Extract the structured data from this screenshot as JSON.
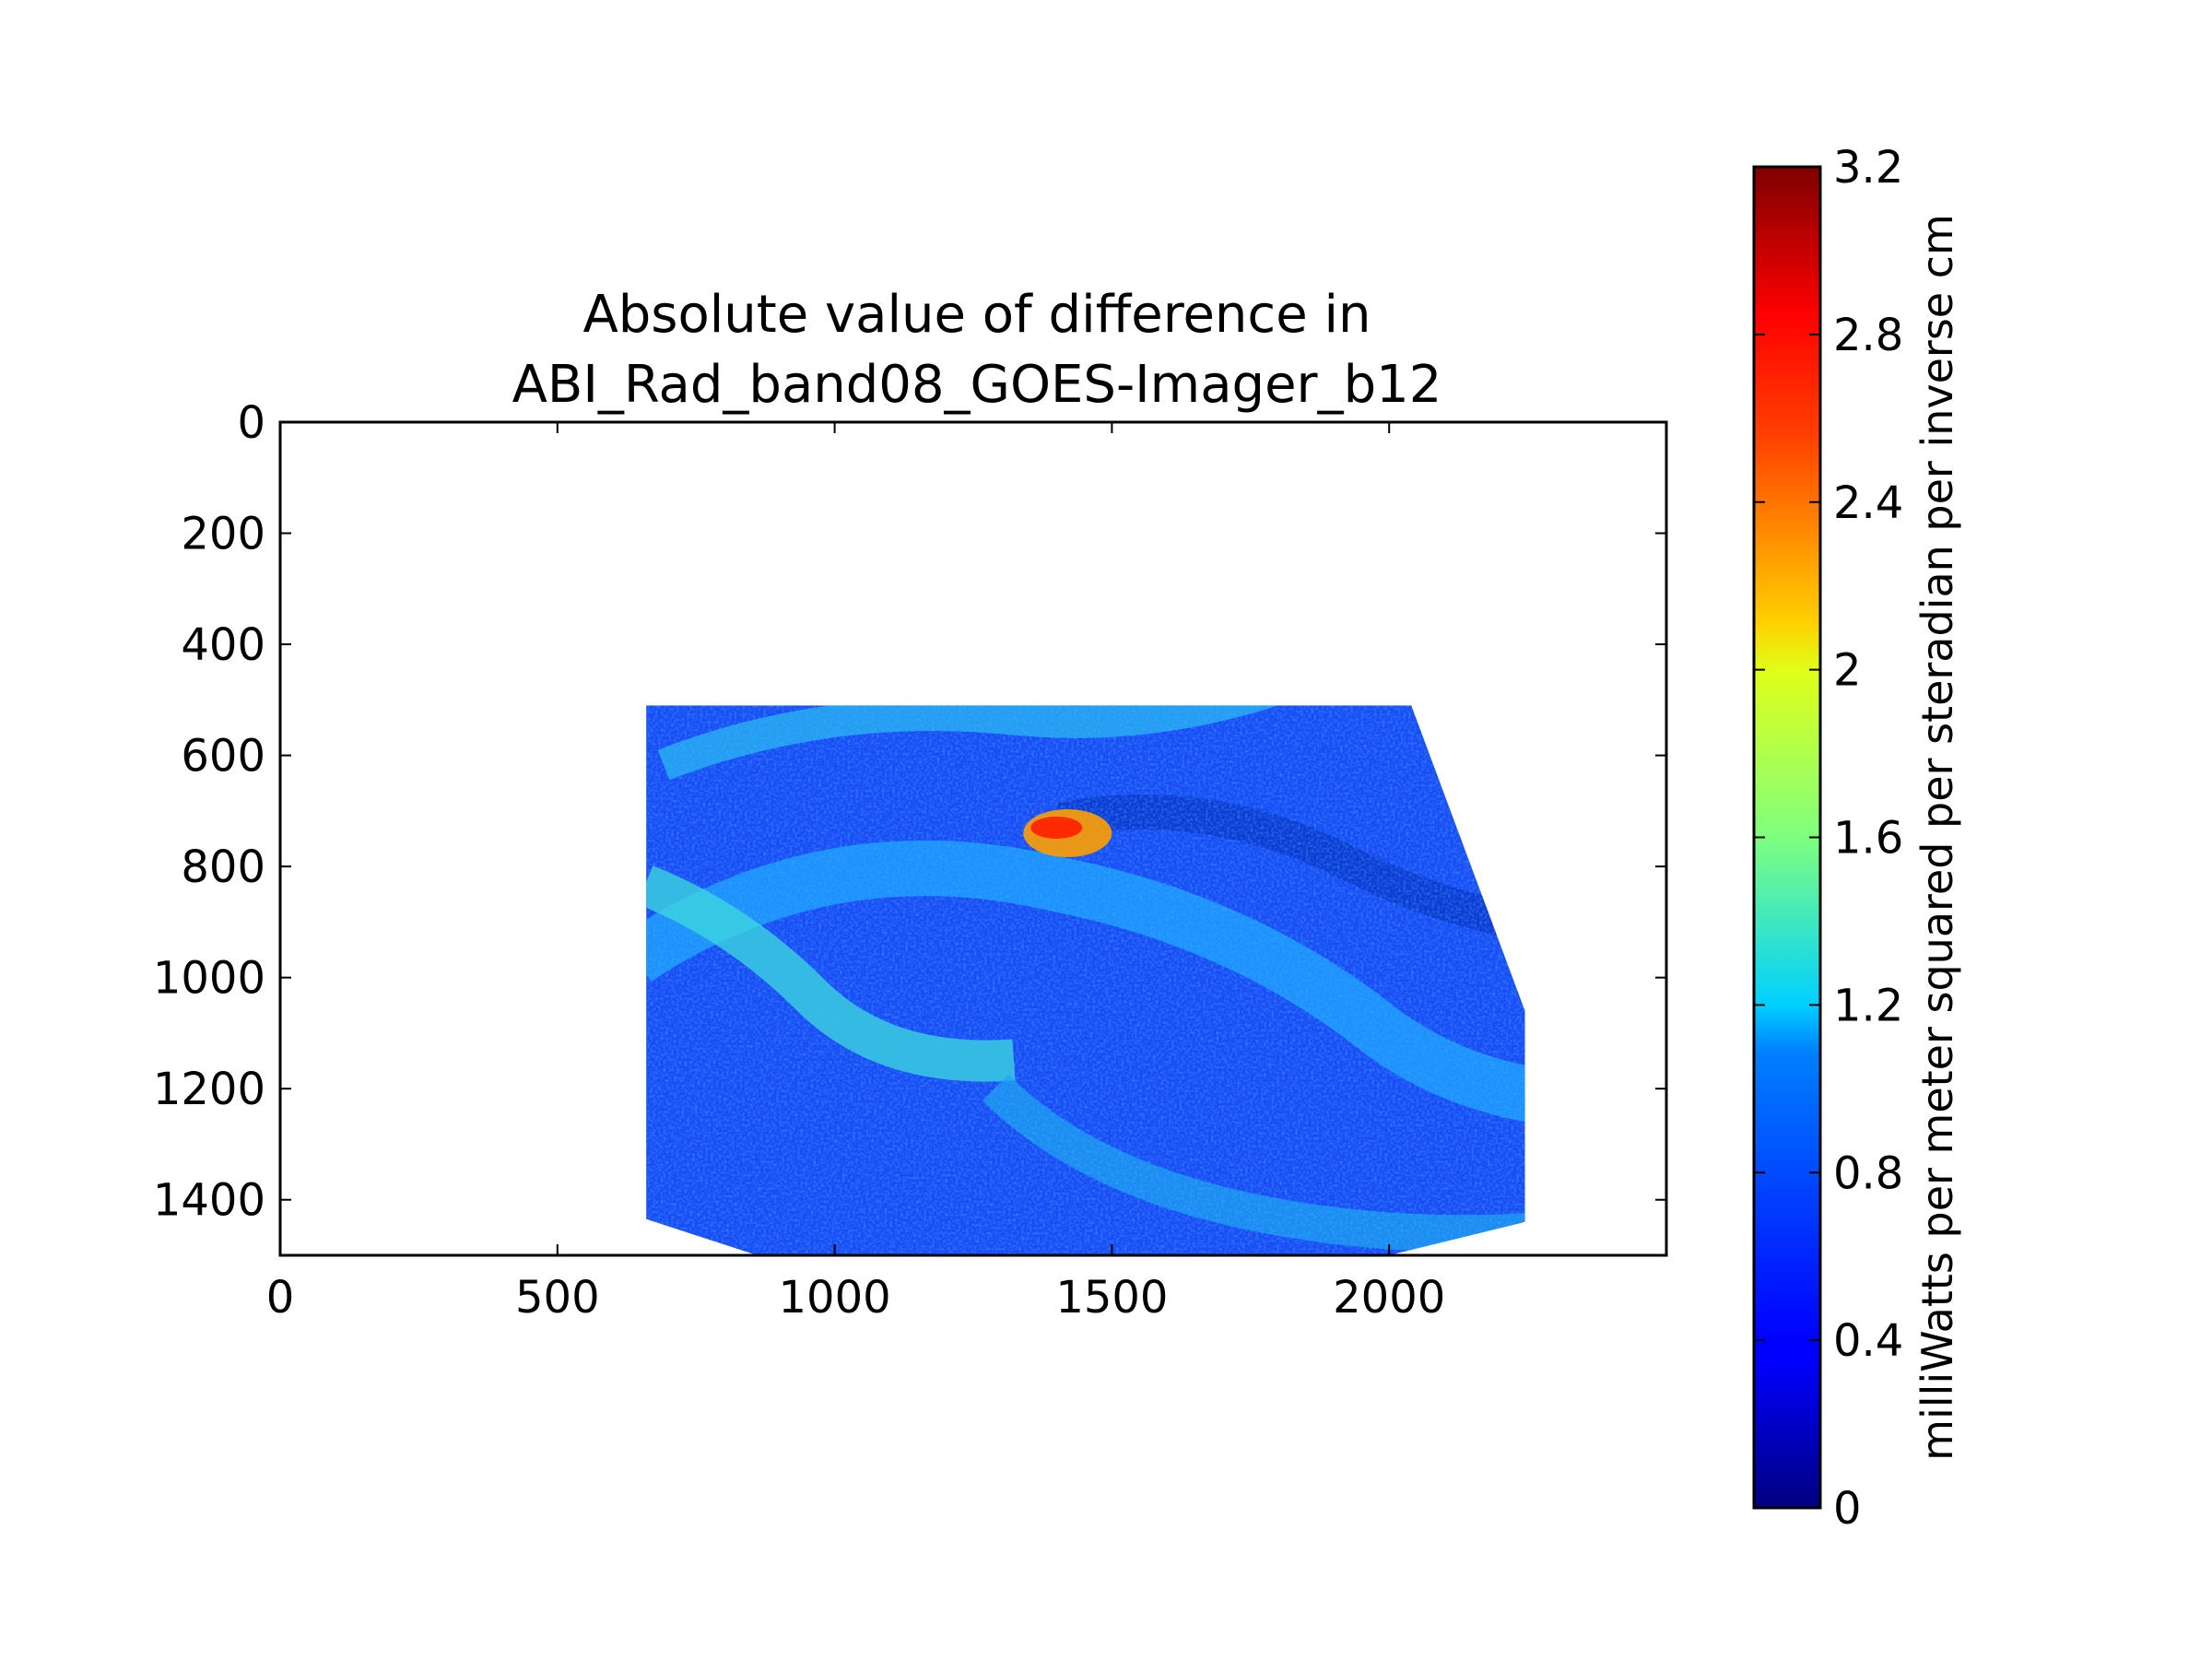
{
  "chart_data": {
    "type": "heatmap",
    "title_lines": [
      "Absolute value of difference in",
      "ABI_Rad_band08_GOES-Imager_b12"
    ],
    "xlim": [
      0,
      2500
    ],
    "ylim": [
      1500,
      0
    ],
    "xticks": [
      0,
      500,
      1000,
      1500,
      2000
    ],
    "yticks": [
      0,
      200,
      400,
      600,
      800,
      1000,
      1200,
      1400
    ],
    "colorbar": {
      "label": "milliWatts per meter squared per steradian per inverse cm",
      "range": [
        0,
        3.2
      ],
      "ticks": [
        "0",
        "0.4",
        "0.8",
        "1.2",
        "1.6",
        "2",
        "2.4",
        "2.8",
        "3.2"
      ],
      "tick_values": [
        0,
        0.4,
        0.8,
        1.2,
        1.6,
        2.0,
        2.4,
        2.8,
        3.2
      ],
      "colormap": "jet"
    },
    "data_region_outline": [
      [
        660,
        510
      ],
      [
        2040,
        510
      ],
      [
        2245,
        1060
      ],
      [
        2245,
        1440
      ],
      [
        2000,
        1500
      ],
      [
        860,
        1500
      ],
      [
        660,
        1435
      ]
    ],
    "hotspot": {
      "x": 1420,
      "y": 740,
      "value": 3.0
    },
    "grid": false
  },
  "colors": {
    "jet_low": "#00007f",
    "jet_mid": "#7fff7f",
    "jet_high": "#7f0000"
  }
}
